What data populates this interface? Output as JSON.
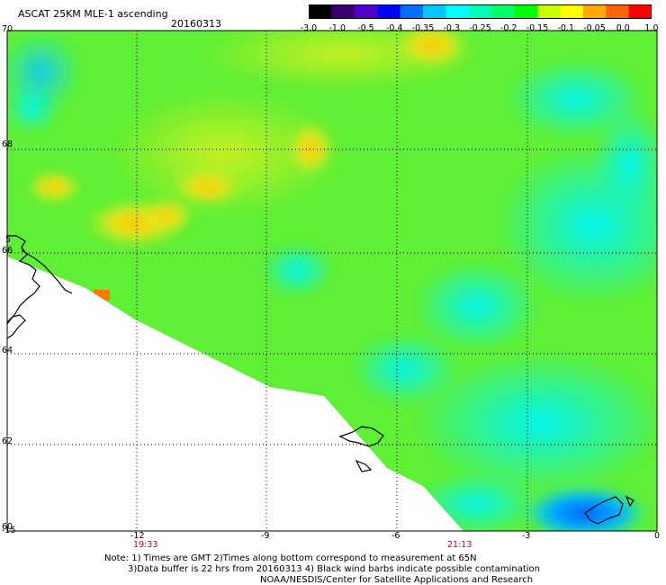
{
  "header": {
    "title": "ASCAT 25KM MLE-1 ascending",
    "date": "20160313"
  },
  "colorbar": {
    "labels": [
      "-3.0",
      "-1.0",
      "-0.5",
      "-0.4",
      "-0.35",
      "-0.3",
      "-0.25",
      "-0.2",
      "-0.15",
      "-0.1",
      "-0.05",
      "0.0",
      "1.0"
    ],
    "colors": [
      "#000000",
      "#3a0070",
      "#5000c8",
      "#0000ff",
      "#006eff",
      "#00c8ff",
      "#00ffff",
      "#00ffb4",
      "#00ff64",
      "#00ff00",
      "#c8ff00",
      "#ffff00",
      "#ffaa00",
      "#ff6400",
      "#ff0000"
    ]
  },
  "axes": {
    "lon_labels": [
      "-15",
      "-12",
      "-9",
      "-6",
      "-3",
      "0"
    ],
    "lat_labels": [
      "70",
      "68",
      "66",
      "64",
      "62",
      "60"
    ],
    "stray_label": "5"
  },
  "times": {
    "t1": "19:33",
    "t2": "21:13"
  },
  "notes": {
    "line1": "Note: 1) Times are GMT 2)Times along bottom correspond to measurement at 65N",
    "line2": "3)Data buffer is 22 hrs from 20160313 4) Black wind barbs indicate possible contamination",
    "line3": "NOAA/NESDIS/Center for Satellite Applications and Research"
  },
  "colors": {
    "grid": "#000000",
    "coast": "#000000",
    "time_label": "#cc0000"
  }
}
